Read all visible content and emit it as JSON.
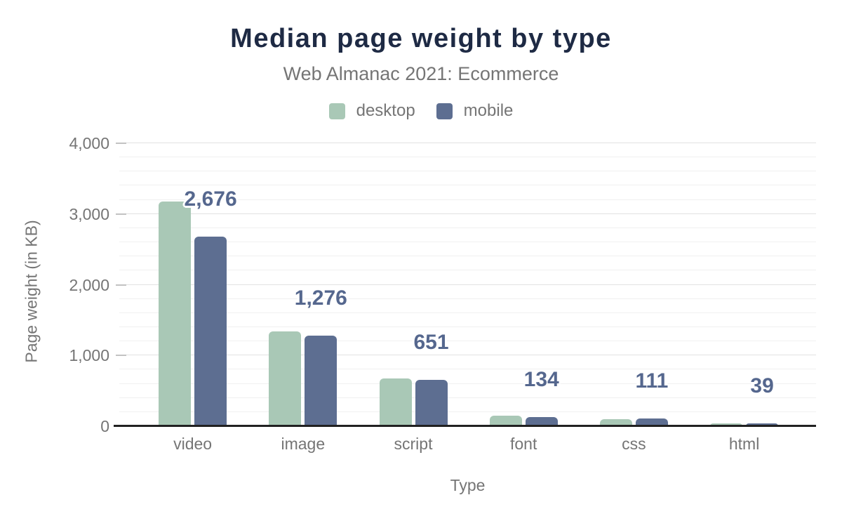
{
  "chart_data": {
    "type": "bar",
    "title": "Median page weight by type",
    "subtitle": "Web Almanac 2021: Ecommerce",
    "xlabel": "Type",
    "ylabel": "Page weight (in KB)",
    "categories": [
      "video",
      "image",
      "script",
      "font",
      "css",
      "html"
    ],
    "series": [
      {
        "name": "desktop",
        "color": "#a9c8b6",
        "values": [
          3180,
          1345,
          675,
          148,
          103,
          42
        ]
      },
      {
        "name": "mobile",
        "color": "#5d6e91",
        "values": [
          2676,
          1276,
          651,
          134,
          111,
          39
        ]
      }
    ],
    "data_labels": {
      "series": "mobile",
      "values": [
        "2,676",
        "1,276",
        "651",
        "134",
        "111",
        "39"
      ]
    },
    "ylim": [
      0,
      4000
    ],
    "ytick_step": 1000,
    "minor_step": 200,
    "ytick_labels": [
      "0",
      "1,000",
      "2,000",
      "3,000",
      "4,000"
    ],
    "grid": "on",
    "legend_position": "top"
  },
  "colors": {
    "title": "#1e2a44",
    "muted_text": "#757575",
    "axis_line": "#212121",
    "grid_major": "#e2e2e2",
    "grid_minor": "#f0f0f0",
    "desktop": "#a9c8b6",
    "mobile": "#5d6e91",
    "value_label": "#55678e",
    "background": "#ffffff"
  }
}
